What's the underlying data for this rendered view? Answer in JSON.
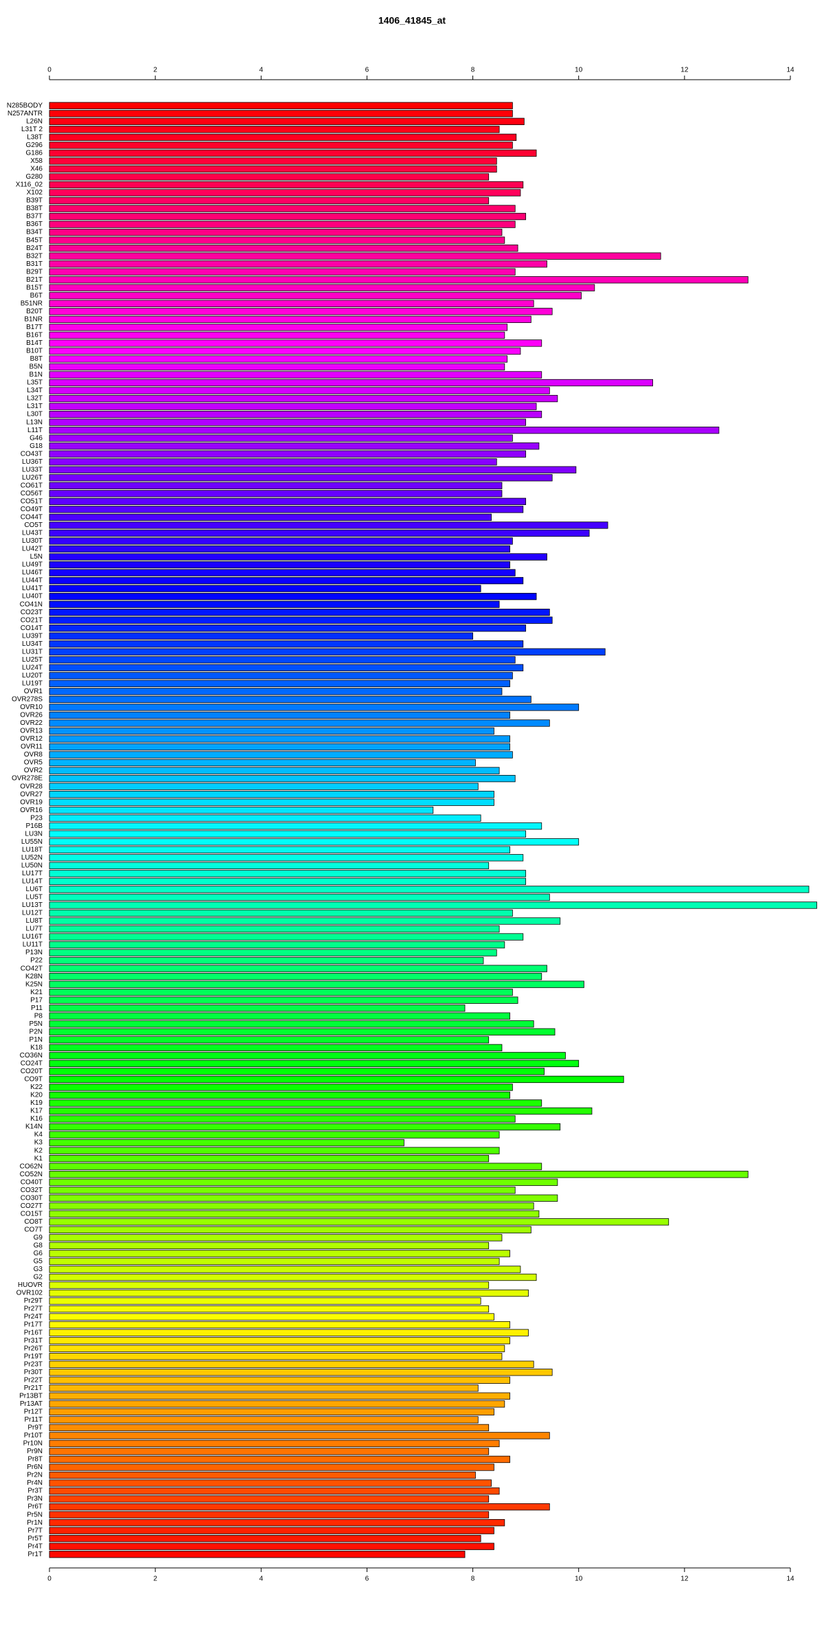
{
  "chart_data": {
    "type": "barh",
    "title": "1406_41845_at",
    "categories": [
      "N285BODY",
      "N257ANTR",
      "L26N",
      "L31T 2",
      "L38T",
      "G296",
      "G186",
      "X58",
      "X46",
      "G280",
      "X116_02",
      "X102",
      "B39T",
      "B38T",
      "B37T",
      "B36T",
      "B34T",
      "B45T",
      "B24T",
      "B32T",
      "B31T",
      "B29T",
      "B21T",
      "B15T",
      "B6T",
      "B51NR",
      "B20T",
      "B1NR",
      "B17T",
      "B16T",
      "B14T",
      "B10T",
      "B8T",
      "B5N",
      "B1N",
      "L35T",
      "L34T",
      "L32T",
      "L31T",
      "L30T",
      "L13N",
      "L11T",
      "G46",
      "G18",
      "CO43T",
      "LU36T",
      "LU33T",
      "LU26T",
      "CO61T",
      "CO56T",
      "CO51T",
      "CO49T",
      "CO44T",
      "CO5T",
      "LU43T",
      "LU30T",
      "LU42T",
      "L5N",
      "LU49T",
      "LU46T",
      "LU44T",
      "LU41T",
      "LU40T",
      "CO41N",
      "CO23T",
      "CO21T",
      "CO14T",
      "LU39T",
      "LU34T",
      "LU31T",
      "LU25T",
      "LU24T",
      "LU20T",
      "LU19T",
      "OVR1",
      "OVR278S",
      "OVR10",
      "OVR26",
      "OVR22",
      "OVR13",
      "OVR12",
      "OVR11",
      "OVR8",
      "OVR5",
      "OVR2",
      "OVR278E",
      "OVR28",
      "OVR27",
      "OVR19",
      "OVR16",
      "P23",
      "P16B",
      "LU3N",
      "LU55N",
      "LU18T",
      "LU52N",
      "LU50N",
      "LU17T",
      "LU14T",
      "LU6T",
      "LU5T",
      "LU13T",
      "LU12T",
      "LU8T",
      "LU7T",
      "LU16T",
      "LU11T",
      "P13N",
      "P22",
      "CO42T",
      "K28N",
      "K25N",
      "K21",
      "P17",
      "P11",
      "P8",
      "P5N",
      "P2N",
      "P1N",
      "K18",
      "CO36N",
      "CO24T",
      "CO20T",
      "CO9T",
      "K22",
      "K20",
      "K19",
      "K17",
      "K16",
      "K14N",
      "K4",
      "K3",
      "K2",
      "K1",
      "CO62N",
      "CO52N",
      "CO40T",
      "CO32T",
      "CO30T",
      "CO27T",
      "CO15T",
      "CO8T",
      "CO7T",
      "G9",
      "G8",
      "G6",
      "G5",
      "G3",
      "G2",
      "HUOVR",
      "OVR102",
      "Pr29T",
      "Pr27T",
      "Pr24T",
      "Pr17T",
      "Pr16T",
      "Pr31T",
      "Pr26T",
      "Pr19T",
      "Pr23T",
      "Pr30T",
      "Pr22T",
      "Pr21T",
      "Pr13BT",
      "Pr13AT",
      "Pr12T",
      "Pr11T",
      "Pr9T",
      "Pr10T",
      "Pr10N",
      "Pr9N",
      "Pr8T",
      "Pr6N",
      "Pr2N",
      "Pr4N",
      "Pr3T",
      "Pr3N",
      "Pr6T",
      "Pr5N",
      "Pr1N",
      "Pr7T",
      "Pr5T",
      "Pr4T",
      "Pr1T"
    ],
    "values": [
      8.75,
      8.75,
      8.97,
      8.5,
      8.82,
      8.75,
      9.2,
      8.45,
      8.45,
      8.3,
      8.95,
      8.9,
      8.3,
      8.8,
      9.0,
      8.8,
      8.55,
      8.6,
      8.85,
      11.55,
      9.4,
      8.8,
      13.2,
      10.3,
      10.05,
      9.15,
      9.5,
      9.1,
      8.65,
      8.6,
      9.3,
      8.9,
      8.65,
      8.6,
      9.3,
      11.4,
      9.45,
      9.6,
      9.2,
      9.3,
      9.0,
      12.65,
      8.75,
      9.25,
      9.0,
      8.45,
      9.95,
      9.5,
      8.55,
      8.55,
      9.0,
      8.95,
      8.35,
      10.55,
      10.2,
      8.75,
      8.7,
      9.4,
      8.7,
      8.8,
      8.95,
      8.15,
      9.2,
      8.5,
      9.45,
      9.5,
      9.0,
      8.0,
      8.95,
      10.5,
      8.8,
      8.95,
      8.75,
      8.7,
      8.55,
      9.1,
      10.0,
      8.7,
      9.45,
      8.4,
      8.7,
      8.7,
      8.75,
      8.05,
      8.5,
      8.8,
      8.1,
      8.4,
      8.4,
      7.25,
      8.15,
      9.3,
      9.0,
      10.0,
      8.7,
      8.95,
      8.3,
      9.0,
      9.0,
      14.35,
      9.45,
      14.5,
      8.75,
      9.65,
      8.5,
      8.95,
      8.6,
      8.45,
      8.2,
      9.4,
      9.3,
      10.1,
      8.75,
      8.85,
      7.85,
      8.7,
      9.15,
      9.55,
      8.3,
      8.55,
      9.75,
      10.0,
      9.35,
      10.85,
      8.75,
      8.7,
      9.3,
      10.25,
      8.8,
      9.65,
      8.5,
      6.7,
      8.5,
      8.3,
      9.3,
      13.2,
      9.6,
      8.8,
      9.6,
      9.15,
      9.25,
      11.7,
      9.1,
      8.55,
      8.3,
      8.7,
      8.5,
      8.9,
      9.2,
      8.3,
      9.05,
      8.15,
      8.3,
      8.4,
      8.7,
      9.05,
      8.7,
      8.6,
      8.55,
      9.15,
      9.5,
      8.7,
      8.1,
      8.7,
      8.6,
      8.4,
      8.1,
      8.3,
      9.45,
      8.5,
      8.3,
      8.7,
      8.4,
      8.05,
      8.35,
      8.5,
      8.3,
      9.45,
      8.3,
      8.6,
      8.4,
      8.15,
      8.4,
      7.85
    ],
    "color_scheme": "rainbow",
    "xlim": [
      0,
      14
    ],
    "xticks": [
      0,
      2,
      4,
      6,
      8,
      10,
      12,
      14
    ]
  }
}
